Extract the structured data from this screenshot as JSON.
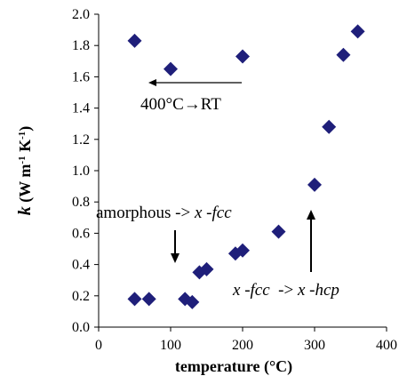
{
  "chart_data": {
    "type": "scatter",
    "xlabel": "temperature (°C)",
    "ylabel": {
      "k": "k",
      "rest": " (W m",
      "exp": "-1",
      "rest2": " K",
      "exp2": "-1",
      "close": ")"
    },
    "xlim": [
      0,
      400
    ],
    "ylim": [
      0.0,
      2.0
    ],
    "xticks": [
      "0",
      "100",
      "200",
      "300",
      "400"
    ],
    "yticks": [
      "0.0",
      "0.2",
      "0.4",
      "0.6",
      "0.8",
      "1.0",
      "1.2",
      "1.4",
      "1.6",
      "1.8",
      "2.0"
    ],
    "grid": false,
    "marker": "diamond",
    "marker_color": "#1f1f7a",
    "points": [
      {
        "x": 50,
        "y": 1.83
      },
      {
        "x": 100,
        "y": 1.65
      },
      {
        "x": 200,
        "y": 1.73
      },
      {
        "x": 50,
        "y": 0.18
      },
      {
        "x": 70,
        "y": 0.18
      },
      {
        "x": 120,
        "y": 0.18
      },
      {
        "x": 130,
        "y": 0.16
      },
      {
        "x": 140,
        "y": 0.35
      },
      {
        "x": 150,
        "y": 0.37
      },
      {
        "x": 190,
        "y": 0.47
      },
      {
        "x": 200,
        "y": 0.49
      },
      {
        "x": 250,
        "y": 0.61
      },
      {
        "x": 300,
        "y": 0.91
      },
      {
        "x": 320,
        "y": 1.28
      },
      {
        "x": 340,
        "y": 1.74
      },
      {
        "x": 360,
        "y": 1.89
      }
    ],
    "annotations": [
      {
        "id": "cool",
        "text": "400°C→RT"
      },
      {
        "id": "amorph",
        "parts": [
          "amorphous -> ",
          "x",
          " -",
          "fcc"
        ]
      },
      {
        "id": "hcp",
        "parts": [
          "x",
          " -",
          "fcc",
          "  -> ",
          "x",
          " -",
          "hcp"
        ]
      }
    ]
  }
}
